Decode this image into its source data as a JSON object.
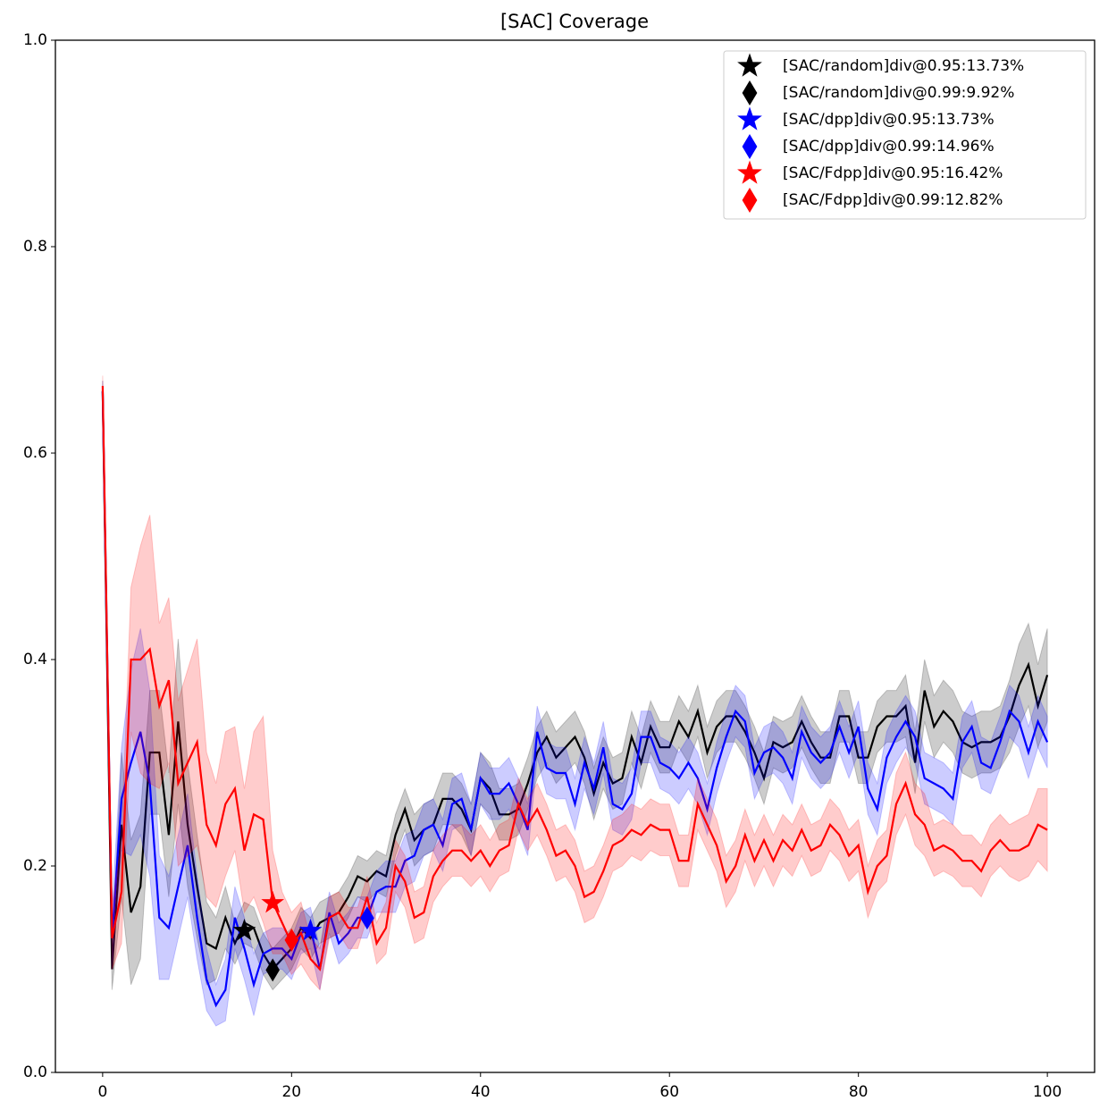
{
  "chart_data": {
    "type": "line",
    "title": "[SAC] Coverage",
    "x": [
      0,
      1,
      2,
      3,
      4,
      5,
      6,
      7,
      8,
      9,
      10,
      11,
      12,
      13,
      14,
      15,
      16,
      17,
      18,
      19,
      20,
      21,
      22,
      23,
      24,
      25,
      26,
      27,
      28,
      29,
      30,
      31,
      32,
      33,
      34,
      35,
      36,
      37,
      38,
      39,
      40,
      41,
      42,
      43,
      44,
      45,
      46,
      47,
      48,
      49,
      50,
      51,
      52,
      53,
      54,
      55,
      56,
      57,
      58,
      59,
      60,
      61,
      62,
      63,
      64,
      65,
      66,
      67,
      68,
      69,
      70,
      71,
      72,
      73,
      74,
      75,
      76,
      77,
      78,
      79,
      80,
      81,
      82,
      83,
      84,
      85,
      86,
      87,
      88,
      89,
      90,
      91,
      92,
      93,
      94,
      95,
      96,
      97,
      98,
      99,
      100
    ],
    "xlim": [
      -5,
      105
    ],
    "xticks": [
      0,
      20,
      40,
      60,
      80,
      100
    ],
    "ylim": [
      0,
      1
    ],
    "yticks": [
      {
        "value": 0,
        "label": "0.0"
      },
      0.2,
      0.4,
      0.6,
      0.8,
      {
        "value": 1,
        "label": "1.0"
      }
    ],
    "legend": "upper right",
    "series": [
      {
        "color": "#000000",
        "values": [
          0.66,
          0.1,
          0.24,
          0.155,
          0.18,
          0.31,
          0.31,
          0.23,
          0.34,
          0.24,
          0.18,
          0.125,
          0.12,
          0.15,
          0.125,
          0.145,
          0.14,
          0.115,
          0.1,
          0.11,
          0.12,
          0.14,
          0.13,
          0.145,
          0.15,
          0.155,
          0.17,
          0.19,
          0.185,
          0.195,
          0.19,
          0.23,
          0.255,
          0.225,
          0.235,
          0.24,
          0.265,
          0.265,
          0.255,
          0.235,
          0.285,
          0.275,
          0.25,
          0.25,
          0.255,
          0.28,
          0.31,
          0.325,
          0.305,
          0.315,
          0.325,
          0.305,
          0.27,
          0.3,
          0.28,
          0.285,
          0.325,
          0.3,
          0.335,
          0.315,
          0.315,
          0.34,
          0.325,
          0.35,
          0.31,
          0.335,
          0.345,
          0.345,
          0.33,
          0.31,
          0.285,
          0.32,
          0.315,
          0.32,
          0.34,
          0.32,
          0.305,
          0.305,
          0.345,
          0.345,
          0.305,
          0.305,
          0.335,
          0.345,
          0.345,
          0.355,
          0.3,
          0.37,
          0.335,
          0.35,
          0.34,
          0.32,
          0.315,
          0.32,
          0.32,
          0.325,
          0.345,
          0.375,
          0.395,
          0.355,
          0.385
        ],
        "errors": [
          0.01,
          0.02,
          0.07,
          0.07,
          0.07,
          0.06,
          0.06,
          0.06,
          0.08,
          0.06,
          0.05,
          0.04,
          0.03,
          0.03,
          0.02,
          0.02,
          0.02,
          0.02,
          0.02,
          0.02,
          0.02,
          0.02,
          0.02,
          0.02,
          0.02,
          0.02,
          0.02,
          0.02,
          0.02,
          0.02,
          0.02,
          0.02,
          0.02,
          0.025,
          0.025,
          0.025,
          0.025,
          0.025,
          0.025,
          0.025,
          0.025,
          0.025,
          0.025,
          0.025,
          0.025,
          0.025,
          0.025,
          0.025,
          0.025,
          0.025,
          0.025,
          0.025,
          0.025,
          0.025,
          0.025,
          0.025,
          0.025,
          0.025,
          0.025,
          0.025,
          0.025,
          0.025,
          0.025,
          0.025,
          0.025,
          0.025,
          0.025,
          0.025,
          0.025,
          0.025,
          0.025,
          0.025,
          0.025,
          0.025,
          0.025,
          0.025,
          0.025,
          0.025,
          0.025,
          0.025,
          0.025,
          0.025,
          0.025,
          0.025,
          0.025,
          0.03,
          0.03,
          0.03,
          0.03,
          0.03,
          0.03,
          0.03,
          0.03,
          0.03,
          0.03,
          0.03,
          0.035,
          0.04,
          0.04,
          0.04,
          0.045
        ]
      },
      {
        "color": "#0000ff",
        "values": [
          0.66,
          0.13,
          0.265,
          0.3,
          0.33,
          0.28,
          0.15,
          0.14,
          0.18,
          0.22,
          0.15,
          0.09,
          0.065,
          0.08,
          0.15,
          0.12,
          0.085,
          0.115,
          0.12,
          0.12,
          0.11,
          0.135,
          0.14,
          0.1,
          0.155,
          0.125,
          0.135,
          0.15,
          0.15,
          0.175,
          0.18,
          0.18,
          0.205,
          0.21,
          0.235,
          0.24,
          0.22,
          0.26,
          0.265,
          0.235,
          0.285,
          0.27,
          0.27,
          0.28,
          0.26,
          0.235,
          0.33,
          0.295,
          0.29,
          0.29,
          0.26,
          0.3,
          0.275,
          0.315,
          0.26,
          0.255,
          0.27,
          0.325,
          0.325,
          0.3,
          0.295,
          0.285,
          0.3,
          0.285,
          0.255,
          0.295,
          0.325,
          0.35,
          0.34,
          0.29,
          0.31,
          0.315,
          0.305,
          0.285,
          0.33,
          0.31,
          0.3,
          0.31,
          0.335,
          0.31,
          0.335,
          0.275,
          0.255,
          0.305,
          0.325,
          0.34,
          0.325,
          0.285,
          0.28,
          0.275,
          0.265,
          0.32,
          0.335,
          0.3,
          0.295,
          0.32,
          0.35,
          0.34,
          0.31,
          0.34,
          0.32
        ],
        "errors": [
          0.01,
          0.03,
          0.05,
          0.09,
          0.1,
          0.09,
          0.06,
          0.05,
          0.05,
          0.05,
          0.04,
          0.03,
          0.02,
          0.03,
          0.03,
          0.03,
          0.03,
          0.02,
          0.02,
          0.02,
          0.02,
          0.02,
          0.02,
          0.02,
          0.02,
          0.02,
          0.02,
          0.02,
          0.02,
          0.02,
          0.025,
          0.025,
          0.025,
          0.025,
          0.025,
          0.025,
          0.025,
          0.025,
          0.025,
          0.025,
          0.025,
          0.025,
          0.025,
          0.025,
          0.025,
          0.025,
          0.025,
          0.025,
          0.025,
          0.025,
          0.025,
          0.025,
          0.025,
          0.025,
          0.025,
          0.025,
          0.025,
          0.025,
          0.025,
          0.025,
          0.025,
          0.025,
          0.025,
          0.025,
          0.025,
          0.025,
          0.025,
          0.025,
          0.025,
          0.025,
          0.025,
          0.025,
          0.025,
          0.025,
          0.025,
          0.025,
          0.025,
          0.025,
          0.025,
          0.025,
          0.025,
          0.025,
          0.025,
          0.025,
          0.025,
          0.025,
          0.025,
          0.025,
          0.025,
          0.025,
          0.025,
          0.025,
          0.025,
          0.025,
          0.025,
          0.025,
          0.025,
          0.025,
          0.025,
          0.025,
          0.025
        ]
      },
      {
        "color": "#ff0000",
        "values": [
          0.665,
          0.13,
          0.175,
          0.4,
          0.4,
          0.41,
          0.355,
          0.38,
          0.28,
          0.3,
          0.32,
          0.24,
          0.22,
          0.26,
          0.275,
          0.215,
          0.25,
          0.245,
          0.165,
          0.145,
          0.125,
          0.135,
          0.11,
          0.1,
          0.15,
          0.155,
          0.14,
          0.14,
          0.17,
          0.125,
          0.14,
          0.2,
          0.185,
          0.15,
          0.155,
          0.19,
          0.205,
          0.215,
          0.215,
          0.205,
          0.215,
          0.2,
          0.215,
          0.22,
          0.26,
          0.24,
          0.255,
          0.235,
          0.21,
          0.215,
          0.2,
          0.17,
          0.175,
          0.195,
          0.22,
          0.225,
          0.235,
          0.23,
          0.24,
          0.235,
          0.235,
          0.205,
          0.205,
          0.26,
          0.24,
          0.22,
          0.185,
          0.2,
          0.23,
          0.205,
          0.225,
          0.205,
          0.225,
          0.215,
          0.235,
          0.215,
          0.22,
          0.24,
          0.23,
          0.21,
          0.22,
          0.175,
          0.2,
          0.21,
          0.26,
          0.28,
          0.25,
          0.24,
          0.215,
          0.22,
          0.215,
          0.205,
          0.205,
          0.195,
          0.215,
          0.225,
          0.215,
          0.215,
          0.22,
          0.24,
          0.235
        ],
        "errors": [
          0.01,
          0.03,
          0.05,
          0.07,
          0.11,
          0.13,
          0.08,
          0.08,
          0.08,
          0.09,
          0.1,
          0.07,
          0.06,
          0.07,
          0.06,
          0.06,
          0.08,
          0.1,
          0.05,
          0.03,
          0.03,
          0.03,
          0.02,
          0.02,
          0.02,
          0.02,
          0.02,
          0.02,
          0.02,
          0.02,
          0.025,
          0.025,
          0.025,
          0.025,
          0.025,
          0.025,
          0.025,
          0.025,
          0.025,
          0.025,
          0.025,
          0.025,
          0.025,
          0.025,
          0.025,
          0.025,
          0.025,
          0.025,
          0.025,
          0.025,
          0.025,
          0.025,
          0.025,
          0.025,
          0.025,
          0.025,
          0.025,
          0.025,
          0.025,
          0.025,
          0.025,
          0.025,
          0.025,
          0.025,
          0.025,
          0.025,
          0.025,
          0.025,
          0.025,
          0.025,
          0.025,
          0.025,
          0.025,
          0.025,
          0.025,
          0.025,
          0.025,
          0.025,
          0.025,
          0.025,
          0.025,
          0.025,
          0.025,
          0.025,
          0.03,
          0.03,
          0.03,
          0.03,
          0.025,
          0.025,
          0.025,
          0.025,
          0.025,
          0.025,
          0.025,
          0.025,
          0.025,
          0.03,
          0.03,
          0.035,
          0.04
        ]
      }
    ],
    "markers": [
      {
        "name": "[SAC/random]div@0.95:13.73%",
        "marker": "star",
        "color": "#000000",
        "x": 15,
        "y": 0.1373
      },
      {
        "name": "[SAC/random]div@0.99:9.92%",
        "marker": "diamond",
        "color": "#000000",
        "x": 18,
        "y": 0.0992
      },
      {
        "name": "[SAC/dpp]div@0.95:13.73%",
        "marker": "star",
        "color": "#0000ff",
        "x": 22,
        "y": 0.1373
      },
      {
        "name": "[SAC/dpp]div@0.99:14.96%",
        "marker": "diamond",
        "color": "#0000ff",
        "x": 28,
        "y": 0.1496
      },
      {
        "name": "[SAC/Fdpp]div@0.95:16.42%",
        "marker": "star",
        "color": "#ff0000",
        "x": 18,
        "y": 0.1642
      },
      {
        "name": "[SAC/Fdpp]div@0.99:12.82%",
        "marker": "diamond",
        "color": "#ff0000",
        "x": 20,
        "y": 0.1282
      }
    ]
  }
}
